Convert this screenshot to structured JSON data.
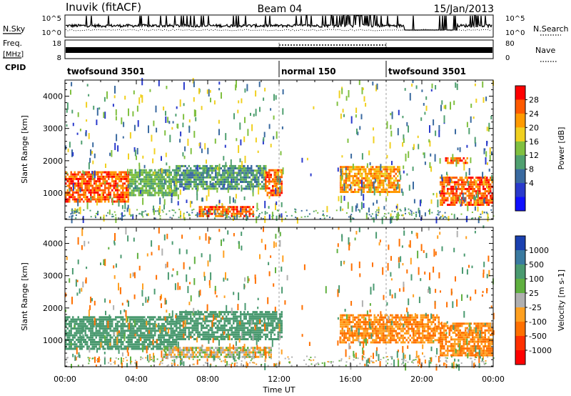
{
  "header": {
    "station": "Inuvik (fitACF)",
    "beam": "Beam 04",
    "date": "15/Jan/2013"
  },
  "panels": {
    "nsky": {
      "label": "N.Sky",
      "right_label": "N.Search",
      "ytick_top": "10^5",
      "ytick_bottom": "10^0",
      "rtick_top": "10^5",
      "rtick_bottom": "10^0"
    },
    "freq": {
      "label": "Freq.",
      "unit": "[MHz]",
      "ytick_top": "18",
      "ytick_bottom": "8",
      "right_label": "Nave",
      "rtick_top": "80",
      "rtick_bottom": "0"
    },
    "cpid": {
      "label": "CPID",
      "segments": [
        {
          "name": "twofsound 3501",
          "start": "00:00",
          "end": "12:00"
        },
        {
          "name": "normal 150",
          "start": "12:00",
          "end": "18:00"
        },
        {
          "name": "twofsound 3501",
          "start": "18:00",
          "end": "24:00"
        }
      ]
    }
  },
  "chart_data": [
    {
      "type": "heatmap",
      "title": "",
      "xlabel": "Time UT",
      "ylabel": "Slant Range [km]",
      "xticks": [
        "00:00",
        "04:00",
        "08:00",
        "12:00",
        "16:00",
        "20:00",
        "00:00"
      ],
      "xlim_hours": [
        0,
        24
      ],
      "ylim": [
        180,
        4500
      ],
      "yticks": [
        1000,
        2000,
        3000,
        4000
      ],
      "colorbar": {
        "label": "Power [dB]",
        "ticks": [
          "28",
          "24",
          "20",
          "16",
          "12",
          "8",
          "4"
        ],
        "colors": [
          "#ff0000",
          "#ff5a00",
          "#ff9a00",
          "#f0d020",
          "#80c040",
          "#50a070",
          "#3a6aa0",
          "#2a3acc",
          "#1010ff"
        ]
      },
      "echo_regions": [
        {
          "start_h": 0.0,
          "end_h": 3.6,
          "range_min": 700,
          "range_max": 1650,
          "power_db": 28
        },
        {
          "start_h": 3.6,
          "end_h": 6.2,
          "range_min": 900,
          "range_max": 1700,
          "power_db": 14
        },
        {
          "start_h": 6.2,
          "end_h": 11.2,
          "range_min": 1100,
          "range_max": 1850,
          "power_db": 12
        },
        {
          "start_h": 7.5,
          "end_h": 10.5,
          "range_min": 250,
          "range_max": 550,
          "power_db": 28
        },
        {
          "start_h": 11.2,
          "end_h": 12.1,
          "range_min": 900,
          "range_max": 1700,
          "power_db": 28
        },
        {
          "start_h": 15.4,
          "end_h": 18.8,
          "range_min": 1000,
          "range_max": 1800,
          "power_db": 24
        },
        {
          "start_h": 21.0,
          "end_h": 24.0,
          "range_min": 600,
          "range_max": 1450,
          "power_db": 28
        },
        {
          "start_h": 21.3,
          "end_h": 22.6,
          "range_min": 1900,
          "range_max": 2100,
          "power_db": 28
        }
      ]
    },
    {
      "type": "heatmap",
      "title": "",
      "xlabel": "Time UT",
      "ylabel": "Slant Range [km]",
      "xticks": [
        "00:00",
        "04:00",
        "08:00",
        "12:00",
        "16:00",
        "20:00",
        "00:00"
      ],
      "xlim_hours": [
        0,
        24
      ],
      "ylim": [
        180,
        4500
      ],
      "yticks": [
        1000,
        2000,
        3000,
        4000
      ],
      "colorbar": {
        "label": "Velocity [m s-1]",
        "ticks": [
          "1000",
          "500",
          "100",
          "25",
          "-25",
          "-100",
          "-500",
          "-1000"
        ],
        "colors": [
          "#1a40b0",
          "#3a7aa0",
          "#4a9a70",
          "#60b040",
          "#b0b0b0",
          "#ffa020",
          "#ff7000",
          "#ff3000",
          "#ff0000"
        ]
      },
      "echo_regions": [
        {
          "start_h": 0.0,
          "end_h": 6.2,
          "range_min": 700,
          "range_max": 1750,
          "velocity_ms": 300
        },
        {
          "start_h": 6.2,
          "end_h": 12.1,
          "range_min": 1000,
          "range_max": 1850,
          "velocity_ms": 300
        },
        {
          "start_h": 5.5,
          "end_h": 11.5,
          "range_min": 450,
          "range_max": 750,
          "velocity_ms": 0
        },
        {
          "start_h": 15.4,
          "end_h": 21.0,
          "range_min": 900,
          "range_max": 1800,
          "velocity_ms": -100
        },
        {
          "start_h": 21.0,
          "end_h": 24.0,
          "range_min": 500,
          "range_max": 1500,
          "velocity_ms": -100
        }
      ]
    }
  ]
}
